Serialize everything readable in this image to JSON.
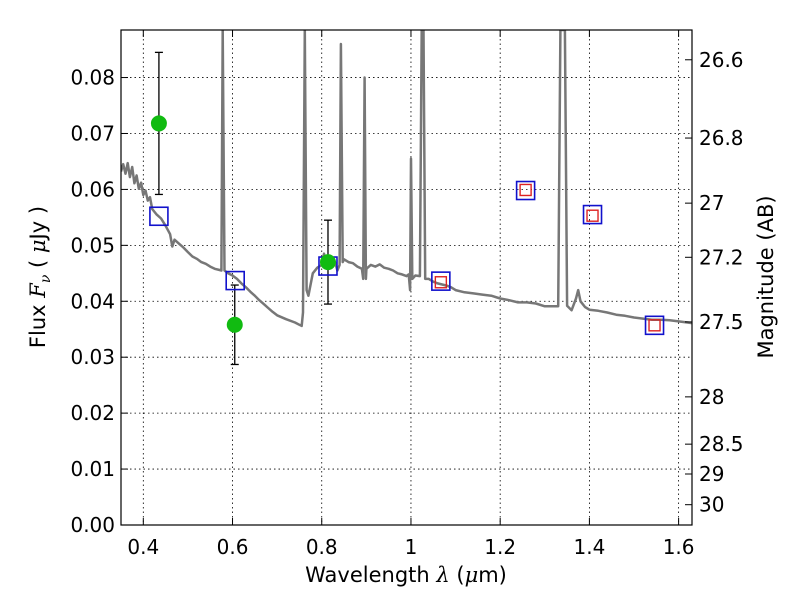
{
  "chart_data": {
    "type": "scatter",
    "xlabel": "Wavelength  λ (μm)",
    "ylabel": "Flux  F_ν  ( μJy )",
    "ylabel_right": "Magnitude (AB)",
    "xlim": [
      0.35,
      1.63
    ],
    "ylim": [
      0.0,
      0.0885
    ],
    "grid": true,
    "x_ticks": [
      0.4,
      0.6,
      0.8,
      1.0,
      1.2,
      1.4,
      1.6
    ],
    "x_tick_labels": [
      "0.4",
      "0.6",
      "0.8",
      "1",
      "1.2",
      "1.4",
      "1.6"
    ],
    "y_ticks": [
      0.0,
      0.01,
      0.02,
      0.03,
      0.04,
      0.05,
      0.06,
      0.07,
      0.08
    ],
    "y_tick_labels": [
      "0.00",
      "0.01",
      "0.02",
      "0.03",
      "0.04",
      "0.05",
      "0.06",
      "0.07",
      "0.08"
    ],
    "right_ticks": [
      26.6,
      26.8,
      27.0,
      27.2,
      27.5,
      28.0,
      28.5,
      29.0,
      30.0
    ],
    "right_tick_labels": [
      "26.6",
      "26.8",
      "27",
      "27.2",
      "27.5",
      "28",
      "28.5",
      "29",
      "30"
    ],
    "series": [
      {
        "kind": "line",
        "color": "#777777",
        "points": [
          [
            0.35,
            0.0632
          ],
          [
            0.355,
            0.0645
          ],
          [
            0.36,
            0.0628
          ],
          [
            0.365,
            0.0647
          ],
          [
            0.37,
            0.0622
          ],
          [
            0.375,
            0.064
          ],
          [
            0.38,
            0.0611
          ],
          [
            0.385,
            0.0625
          ],
          [
            0.39,
            0.0601
          ],
          [
            0.395,
            0.0612
          ],
          [
            0.4,
            0.059
          ],
          [
            0.405,
            0.0598
          ],
          [
            0.41,
            0.058
          ],
          [
            0.415,
            0.0586
          ],
          [
            0.42,
            0.0565
          ],
          [
            0.43,
            0.0555
          ],
          [
            0.44,
            0.0548
          ],
          [
            0.45,
            0.0535
          ],
          [
            0.46,
            0.052
          ],
          [
            0.465,
            0.0498
          ],
          [
            0.47,
            0.051
          ],
          [
            0.48,
            0.0503
          ],
          [
            0.49,
            0.0496
          ],
          [
            0.5,
            0.0488
          ],
          [
            0.51,
            0.048
          ],
          [
            0.52,
            0.0476
          ],
          [
            0.53,
            0.047
          ],
          [
            0.54,
            0.0467
          ],
          [
            0.55,
            0.0462
          ],
          [
            0.56,
            0.0458
          ],
          [
            0.57,
            0.0456
          ],
          [
            0.575,
            0.0455
          ],
          [
            0.578,
            0.0885
          ],
          [
            0.582,
            0.0455
          ],
          [
            0.59,
            0.045
          ],
          [
            0.6,
            0.0446
          ],
          [
            0.61,
            0.044
          ],
          [
            0.62,
            0.0432
          ],
          [
            0.63,
            0.0425
          ],
          [
            0.64,
            0.0417
          ],
          [
            0.65,
            0.041
          ],
          [
            0.66,
            0.0402
          ],
          [
            0.67,
            0.0395
          ],
          [
            0.68,
            0.0388
          ],
          [
            0.69,
            0.0381
          ],
          [
            0.7,
            0.0375
          ],
          [
            0.72,
            0.0368
          ],
          [
            0.74,
            0.0362
          ],
          [
            0.75,
            0.0358
          ],
          [
            0.755,
            0.0356
          ],
          [
            0.758,
            0.038
          ],
          [
            0.762,
            0.0885
          ],
          [
            0.766,
            0.042
          ],
          [
            0.77,
            0.041
          ],
          [
            0.775,
            0.043
          ],
          [
            0.78,
            0.045
          ],
          [
            0.79,
            0.046
          ],
          [
            0.8,
            0.0465
          ],
          [
            0.805,
            0.0485
          ],
          [
            0.81,
            0.047
          ],
          [
            0.82,
            0.0462
          ],
          [
            0.83,
            0.047
          ],
          [
            0.835,
            0.0455
          ],
          [
            0.84,
            0.0465
          ],
          [
            0.843,
            0.086
          ],
          [
            0.847,
            0.047
          ],
          [
            0.85,
            0.0475
          ],
          [
            0.86,
            0.047
          ],
          [
            0.87,
            0.0468
          ],
          [
            0.88,
            0.0462
          ],
          [
            0.89,
            0.0458
          ],
          [
            0.893,
            0.044
          ],
          [
            0.896,
            0.08
          ],
          [
            0.899,
            0.044
          ],
          [
            0.9,
            0.0458
          ],
          [
            0.91,
            0.0465
          ],
          [
            0.92,
            0.0462
          ],
          [
            0.93,
            0.0466
          ],
          [
            0.94,
            0.046
          ],
          [
            0.95,
            0.0458
          ],
          [
            0.96,
            0.0455
          ],
          [
            0.97,
            0.045
          ],
          [
            0.98,
            0.0448
          ],
          [
            0.99,
            0.0445
          ],
          [
            0.995,
            0.0448
          ],
          [
            0.998,
            0.042
          ],
          [
            1.0,
            0.0655
          ],
          [
            1.003,
            0.044
          ],
          [
            1.01,
            0.0446
          ],
          [
            1.02,
            0.0445
          ],
          [
            1.024,
            0.0885
          ],
          [
            1.028,
            0.0885
          ],
          [
            1.032,
            0.044
          ],
          [
            1.04,
            0.044
          ],
          [
            1.05,
            0.0435
          ],
          [
            1.06,
            0.0432
          ],
          [
            1.07,
            0.043
          ],
          [
            1.08,
            0.0428
          ],
          [
            1.09,
            0.0425
          ],
          [
            1.1,
            0.042
          ],
          [
            1.12,
            0.0416
          ],
          [
            1.14,
            0.0414
          ],
          [
            1.16,
            0.0412
          ],
          [
            1.18,
            0.041
          ],
          [
            1.2,
            0.0405
          ],
          [
            1.22,
            0.0402
          ],
          [
            1.24,
            0.0398
          ],
          [
            1.26,
            0.0398
          ],
          [
            1.28,
            0.0396
          ],
          [
            1.3,
            0.0391
          ],
          [
            1.32,
            0.0391
          ],
          [
            1.33,
            0.0391
          ],
          [
            1.335,
            0.0885
          ],
          [
            1.345,
            0.0885
          ],
          [
            1.35,
            0.0392
          ],
          [
            1.36,
            0.0384
          ],
          [
            1.37,
            0.0405
          ],
          [
            1.375,
            0.042
          ],
          [
            1.38,
            0.04
          ],
          [
            1.39,
            0.039
          ],
          [
            1.4,
            0.0385
          ],
          [
            1.42,
            0.0383
          ],
          [
            1.44,
            0.038
          ],
          [
            1.46,
            0.0376
          ],
          [
            1.48,
            0.0374
          ],
          [
            1.5,
            0.0371
          ],
          [
            1.52,
            0.0369
          ],
          [
            1.54,
            0.0367
          ],
          [
            1.56,
            0.0367
          ],
          [
            1.58,
            0.0366
          ],
          [
            1.6,
            0.0364
          ],
          [
            1.62,
            0.0362
          ],
          [
            1.63,
            0.0361
          ]
        ]
      },
      {
        "kind": "points_with_errorbars",
        "color": "#11bb11",
        "points": [
          {
            "x": 0.435,
            "y": 0.0718,
            "err": 0.0127
          },
          {
            "x": 0.605,
            "y": 0.0358,
            "err": 0.0071
          },
          {
            "x": 0.814,
            "y": 0.047,
            "err": 0.0075
          }
        ]
      },
      {
        "kind": "open_squares",
        "color": "#1111cc",
        "points": [
          [
            0.435,
            0.0552
          ],
          [
            0.606,
            0.0437
          ],
          [
            0.814,
            0.0463
          ],
          [
            1.067,
            0.0436
          ],
          [
            1.257,
            0.0598
          ],
          [
            1.407,
            0.0555
          ],
          [
            1.546,
            0.0357
          ]
        ]
      },
      {
        "kind": "small_open_squares",
        "color": "#dd2222",
        "points": [
          [
            1.067,
            0.0434
          ],
          [
            1.257,
            0.0599
          ],
          [
            1.407,
            0.0553
          ],
          [
            1.546,
            0.0357
          ]
        ]
      }
    ]
  }
}
